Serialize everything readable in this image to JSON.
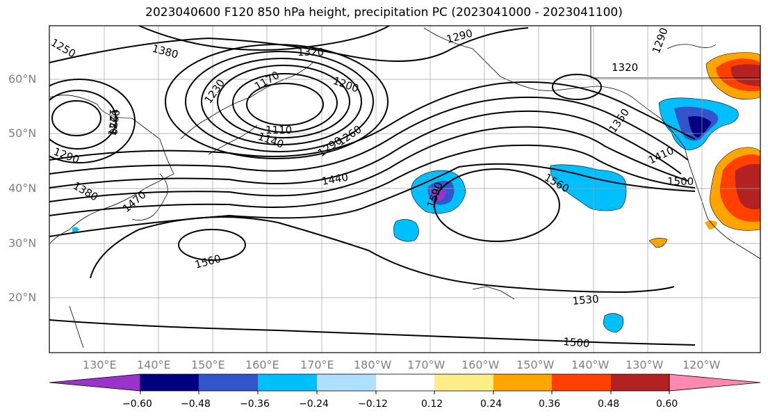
{
  "title": "2023040600 F120 850 hPa height, precipitation PC (2023041000 - 2023041100)",
  "lat_labels": [
    "60°N",
    "50°N",
    "40°N",
    "30°N",
    "20°N"
  ],
  "lon_labels": [
    "130°E",
    "140°E",
    "150°E",
    "160°E",
    "170°E",
    "180°W",
    "170°W",
    "160°W",
    "150°W",
    "140°W",
    "130°W",
    "120°W"
  ],
  "contour_labels": [
    "1250",
    "1380",
    "1320",
    "1290",
    "1290",
    "1320",
    "1230",
    "1170",
    "1200",
    "1230",
    "1260",
    "1110",
    "1140",
    "1290",
    "1260",
    "1350",
    "1290",
    "1380",
    "1410",
    "1470",
    "1440",
    "1590",
    "1560",
    "1500",
    "1560",
    "1530",
    "1500"
  ],
  "colorbar": {
    "colors": [
      "#9933cc",
      "#000080",
      "#3355cc",
      "#00bfff",
      "#b0e0ff",
      "#ffffff",
      "#ffee88",
      "#ffa500",
      "#ff4000",
      "#b22222",
      "#ff88b0"
    ],
    "ticks": [
      "−0.60",
      "−0.48",
      "−0.36",
      "−0.24",
      "−0.12",
      "0.12",
      "0.24",
      "0.36",
      "0.48",
      "0.60"
    ]
  }
}
